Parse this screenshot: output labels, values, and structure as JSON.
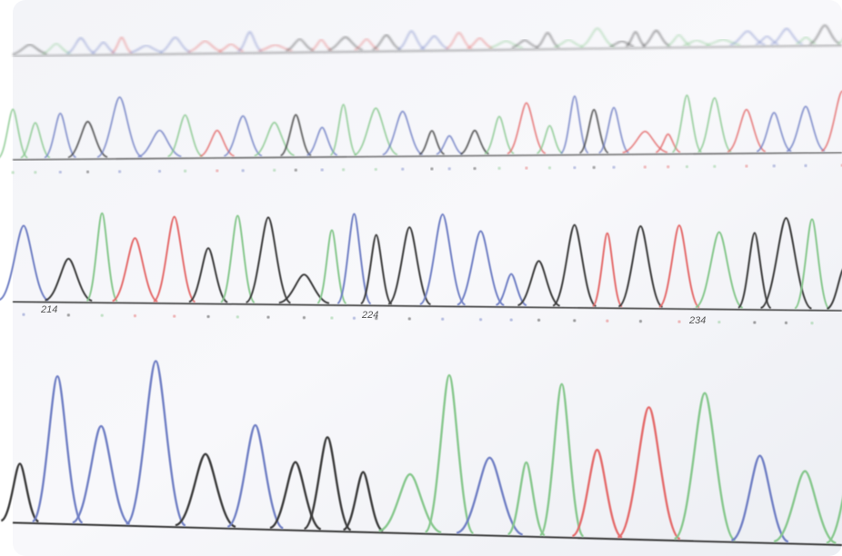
{
  "photo": {
    "trace_labels": [
      "214",
      "224",
      "234"
    ]
  }
}
